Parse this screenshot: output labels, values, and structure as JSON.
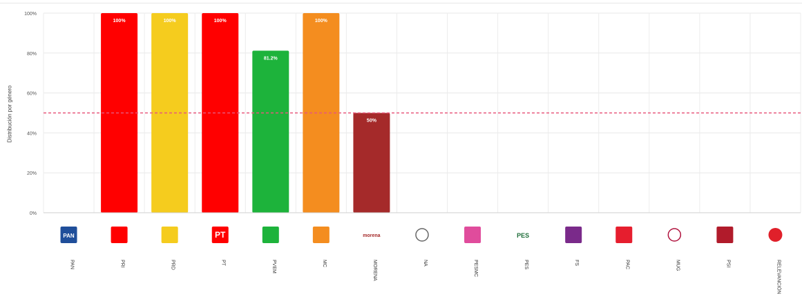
{
  "chart_data": {
    "type": "bar",
    "ylabel": "Distribución por género",
    "ylim": [
      0,
      100
    ],
    "yticks": [
      0,
      20,
      40,
      60,
      80,
      100
    ],
    "ytick_labels": [
      "0%",
      "20%",
      "40%",
      "60%",
      "80%",
      "100%"
    ],
    "reference_line": 50,
    "grid": true,
    "categories": [
      "PAN",
      "PRI",
      "PRD",
      "PT",
      "PVEM",
      "MC",
      "MORENA",
      "NA",
      "PESMC",
      "PES",
      "FS",
      "PAC",
      "MUG",
      "PSI",
      "RELEVANCIÓN"
    ],
    "values": [
      null,
      100,
      100,
      100,
      81.2,
      100,
      50,
      null,
      null,
      null,
      null,
      null,
      null,
      null,
      null
    ],
    "data_labels": [
      "",
      "100%",
      "100%",
      "100%",
      "81.2%",
      "100%",
      "50%",
      "",
      "",
      "",
      "",
      "",
      "",
      "",
      ""
    ],
    "colors": [
      "#1f4e9a",
      "#ff0000",
      "#f5cc1e",
      "#ff0000",
      "#1db33b",
      "#f48d1f",
      "#a52a2a",
      "#666666",
      "#e04c9c",
      "#1f6e3a",
      "#7a2a8a",
      "#e61e2e",
      "#b0133e",
      "#b11b2b",
      "#e0202a"
    ],
    "logo_icons": [
      "pan-logo-icon",
      "pri-logo-icon",
      "prd-logo-icon",
      "pt-logo-icon",
      "pvem-logo-icon",
      "mc-logo-icon",
      "morena-logo-icon",
      "na-logo-icon",
      "pesmc-logo-icon",
      "pes-logo-icon",
      "fs-logo-icon",
      "pac-logo-icon",
      "mug-logo-icon",
      "psi-logo-icon",
      "relevancion-logo-icon"
    ],
    "reference_line_color": "#e8577b",
    "logo_text": {
      "PAN": "PAN",
      "PT": "PT",
      "MORENA": "morena",
      "PES": "PES"
    }
  }
}
